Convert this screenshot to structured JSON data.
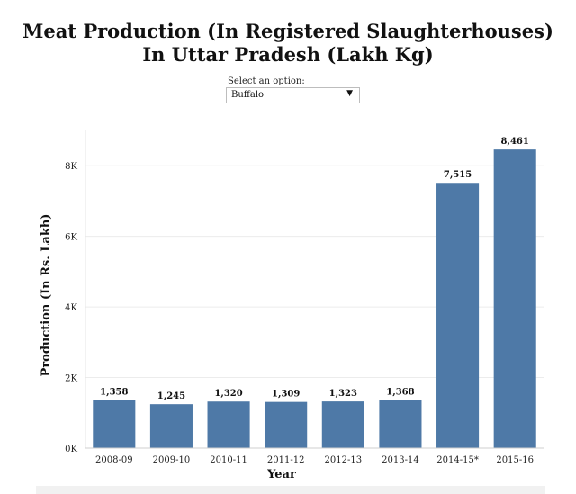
{
  "chart_data": {
    "type": "bar",
    "title_line1": "Meat Production (In Registered Slaughterhouses)",
    "title_line2": "In Uttar Pradesh (Lakh Kg)",
    "xlabel": "Year",
    "ylabel": "Production (In Rs. Lakh)",
    "categories": [
      "2008-09",
      "2009-10",
      "2010-11",
      "2011-12",
      "2012-13",
      "2013-14",
      "2014-15*",
      "2015-16"
    ],
    "values": [
      1358,
      1245,
      1320,
      1309,
      1323,
      1368,
      7515,
      8461
    ],
    "value_labels": [
      "1,358",
      "1,245",
      "1,320",
      "1,309",
      "1,323",
      "1,368",
      "7,515",
      "8,461"
    ],
    "y_ticks": [
      0,
      2000,
      4000,
      6000,
      8000
    ],
    "y_tick_labels": [
      "0K",
      "2K",
      "4K",
      "6K",
      "8K"
    ],
    "ylim": [
      0,
      9000
    ],
    "grid": true,
    "bar_color": "#4e79a7"
  },
  "filter": {
    "label": "Select an option:",
    "selected": "Buffalo"
  }
}
